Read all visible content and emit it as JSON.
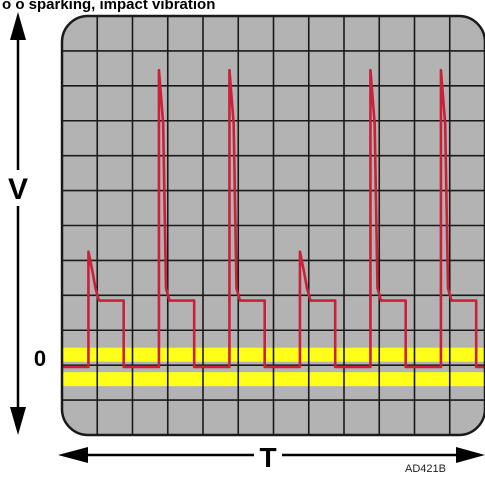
{
  "caption_fragment": "o o sparking, impact vibration",
  "axis_labels": {
    "vertical": "V",
    "horizontal": "T",
    "zero": "0"
  },
  "figure_code": "AD421B",
  "colors": {
    "screen": "#b3b3b3",
    "grid": "#1a1a1a",
    "zero_band": "#ffff1a",
    "trace": "#cc1f3a",
    "arrows": "#000000"
  },
  "grid": {
    "columns": 12,
    "rows": 12
  },
  "chart_data": {
    "type": "line",
    "description_units": "grid divisions",
    "baseline": 0,
    "spikes": [
      {
        "peak": 3.3,
        "plateau": 1.9
      },
      {
        "peak": 8.5,
        "plateau": 1.9
      },
      {
        "peak": 3.3,
        "plateau": 1.9
      },
      {
        "peak": 8.5,
        "plateau": 1.9
      }
    ],
    "pulse_times": [
      1,
      3,
      5,
      7,
      9,
      11
    ],
    "pulse_peaks": [
      3.3,
      8.5,
      8.5,
      3.3,
      8.5,
      8.5
    ],
    "pulse_plateau": 1.9
  }
}
